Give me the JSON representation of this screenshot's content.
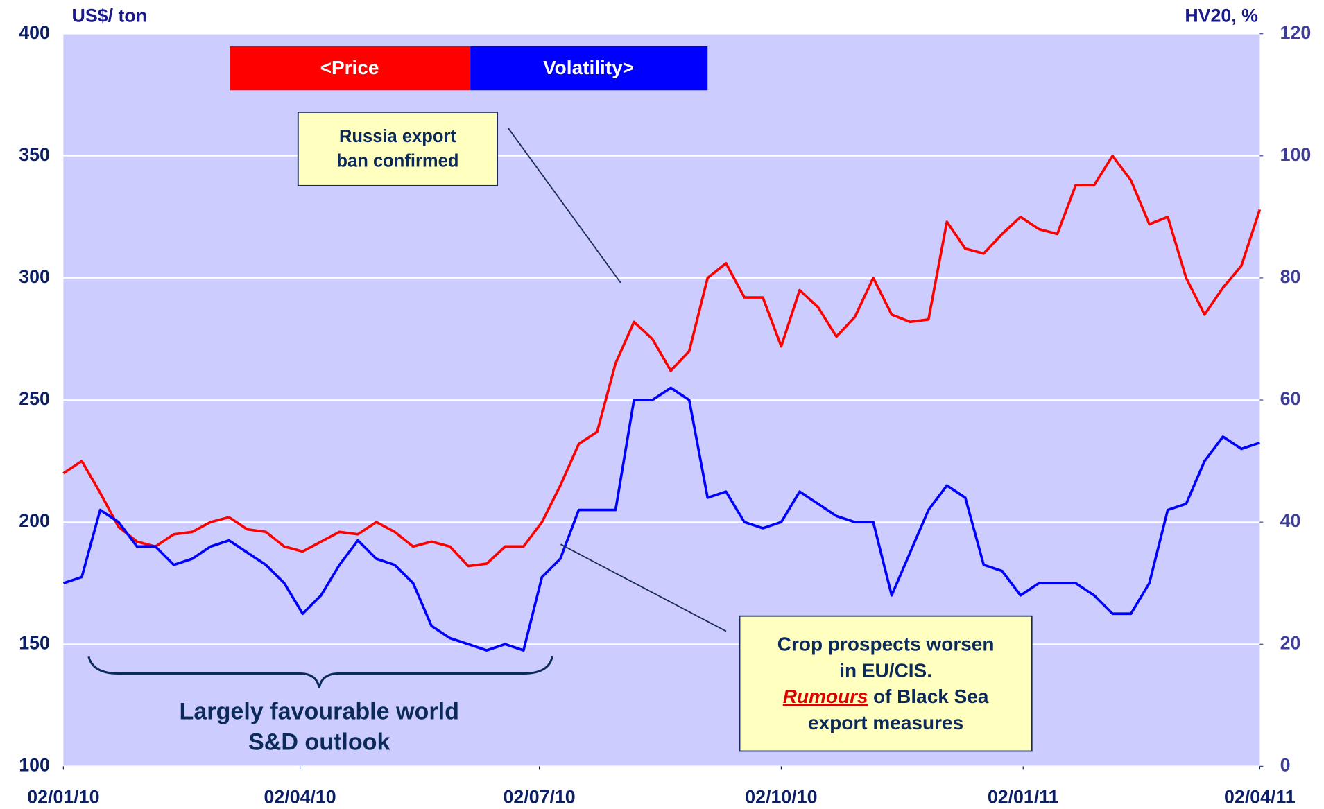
{
  "chart_data": {
    "type": "line",
    "y_label": "US$/ ton",
    "y2_label": "HV20, %",
    "x": [
      "2010-01-02",
      "2010-01-09",
      "2010-01-16",
      "2010-01-23",
      "2010-01-30",
      "2010-02-06",
      "2010-02-13",
      "2010-02-20",
      "2010-02-27",
      "2010-03-06",
      "2010-03-13",
      "2010-03-20",
      "2010-03-27",
      "2010-04-03",
      "2010-04-10",
      "2010-04-17",
      "2010-04-24",
      "2010-05-01",
      "2010-05-08",
      "2010-05-15",
      "2010-05-22",
      "2010-05-29",
      "2010-06-05",
      "2010-06-12",
      "2010-06-19",
      "2010-06-26",
      "2010-07-03",
      "2010-07-10",
      "2010-07-17",
      "2010-07-24",
      "2010-07-31",
      "2010-08-07",
      "2010-08-14",
      "2010-08-21",
      "2010-08-28",
      "2010-09-04",
      "2010-09-11",
      "2010-09-18",
      "2010-09-25",
      "2010-10-02",
      "2010-10-09",
      "2010-10-16",
      "2010-10-23",
      "2010-10-30",
      "2010-11-06",
      "2010-11-13",
      "2010-11-20",
      "2010-11-27",
      "2010-12-04",
      "2010-12-11",
      "2010-12-18",
      "2010-12-25",
      "2011-01-01",
      "2011-01-08",
      "2011-01-15",
      "2011-01-22",
      "2011-01-29",
      "2011-02-05",
      "2011-02-12",
      "2011-02-19",
      "2011-02-26",
      "2011-03-05",
      "2011-03-12",
      "2011-03-19",
      "2011-03-26",
      "2011-04-02"
    ],
    "series": [
      {
        "name": "<Price",
        "color": "#ff0000",
        "axis": "y",
        "values": [
          220,
          225,
          212,
          198,
          192,
          190,
          195,
          196,
          200,
          202,
          197,
          196,
          190,
          188,
          192,
          196,
          195,
          200,
          196,
          190,
          192,
          190,
          182,
          183,
          190,
          190,
          200,
          215,
          232,
          237,
          265,
          282,
          275,
          262,
          270,
          300,
          306,
          292,
          292,
          272,
          295,
          288,
          276,
          284,
          300,
          285,
          282,
          283,
          323,
          312,
          310,
          318,
          325,
          320,
          318,
          338,
          338,
          350,
          340,
          322,
          325,
          300,
          285,
          296,
          305,
          328
        ]
      },
      {
        "name": "Volatility>",
        "color": "#0000ff",
        "axis": "y2",
        "values": [
          30,
          31,
          42,
          40,
          36,
          36,
          33,
          34,
          36,
          37,
          35,
          33,
          30,
          25,
          28,
          33,
          37,
          34,
          33,
          30,
          23,
          21,
          20,
          19,
          20,
          19,
          31,
          34,
          42,
          42,
          42,
          60,
          60,
          62,
          60,
          44,
          45,
          40,
          39,
          40,
          45,
          43,
          41,
          40,
          40,
          28,
          35,
          42,
          46,
          44,
          33,
          32,
          28,
          30,
          30,
          30,
          28,
          25,
          25,
          30,
          42,
          43,
          50,
          54,
          52,
          53
        ]
      }
    ],
    "xlim": [
      "2010-01-02",
      "2011-04-02"
    ],
    "xticks": [
      {
        "value": "2010-01-02",
        "label": "02/01/10"
      },
      {
        "value": "2010-04-02",
        "label": "02/04/10"
      },
      {
        "value": "2010-07-02",
        "label": "02/07/10"
      },
      {
        "value": "2010-10-02",
        "label": "02/10/10"
      },
      {
        "value": "2011-01-02",
        "label": "02/01/11"
      },
      {
        "value": "2011-04-02",
        "label": "02/04/11"
      }
    ],
    "ylim": [
      100,
      400
    ],
    "yticks": [
      100,
      150,
      200,
      250,
      300,
      350,
      400
    ],
    "y2lim": [
      0,
      120
    ],
    "y2ticks": [
      0,
      20,
      40,
      60,
      80,
      100,
      120
    ],
    "grid": true,
    "background": "#ccccff",
    "annotations": {
      "russia": [
        "Russia export",
        "ban confirmed"
      ],
      "crop": {
        "lines": [
          "Crop prospects worsen",
          "in EU/CIS."
        ],
        "emphasis": "Rumours",
        "rest": "of Black Sea",
        "last": "export measures"
      },
      "outlook": [
        "Largely favourable world",
        "S&D outlook"
      ]
    }
  }
}
